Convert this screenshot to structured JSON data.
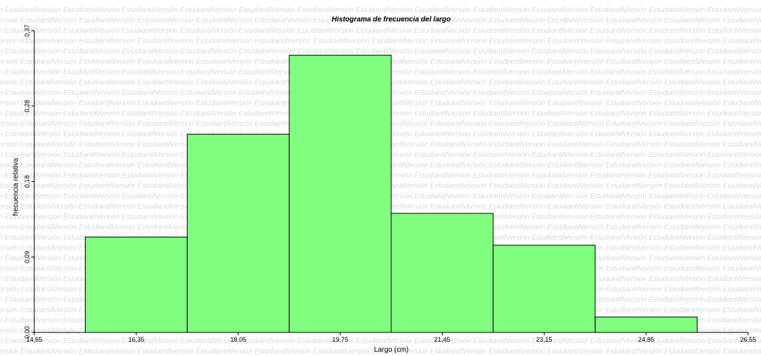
{
  "watermark": {
    "text": "Versión Estudiantil"
  },
  "chart_data": {
    "type": "bar",
    "title": "Histograma de frecuencia del largo",
    "xlabel": "Largo (cm)",
    "ylabel": "frecuencia relativa",
    "xlim": [
      14.65,
      26.55
    ],
    "ylim": [
      0,
      0.37
    ],
    "x_ticks": [
      "14,65",
      "16,35",
      "18,05",
      "19,75",
      "21,45",
      "23,15",
      "24,85",
      "26,55"
    ],
    "y_ticks": [
      "0,00",
      "0,09",
      "0,18",
      "0,28",
      "0,37"
    ],
    "bins": [
      {
        "from": 15.5,
        "to": 17.2,
        "value": 0.117
      },
      {
        "from": 17.2,
        "to": 18.9,
        "value": 0.243
      },
      {
        "from": 18.9,
        "to": 20.6,
        "value": 0.34
      },
      {
        "from": 20.6,
        "to": 22.3,
        "value": 0.146
      },
      {
        "from": 22.3,
        "to": 24.0,
        "value": 0.107
      },
      {
        "from": 24.0,
        "to": 25.7,
        "value": 0.019
      }
    ],
    "colors": {
      "bar_fill": "#80ff80",
      "bar_stroke": "#000000"
    },
    "grid": false,
    "legend": false
  }
}
